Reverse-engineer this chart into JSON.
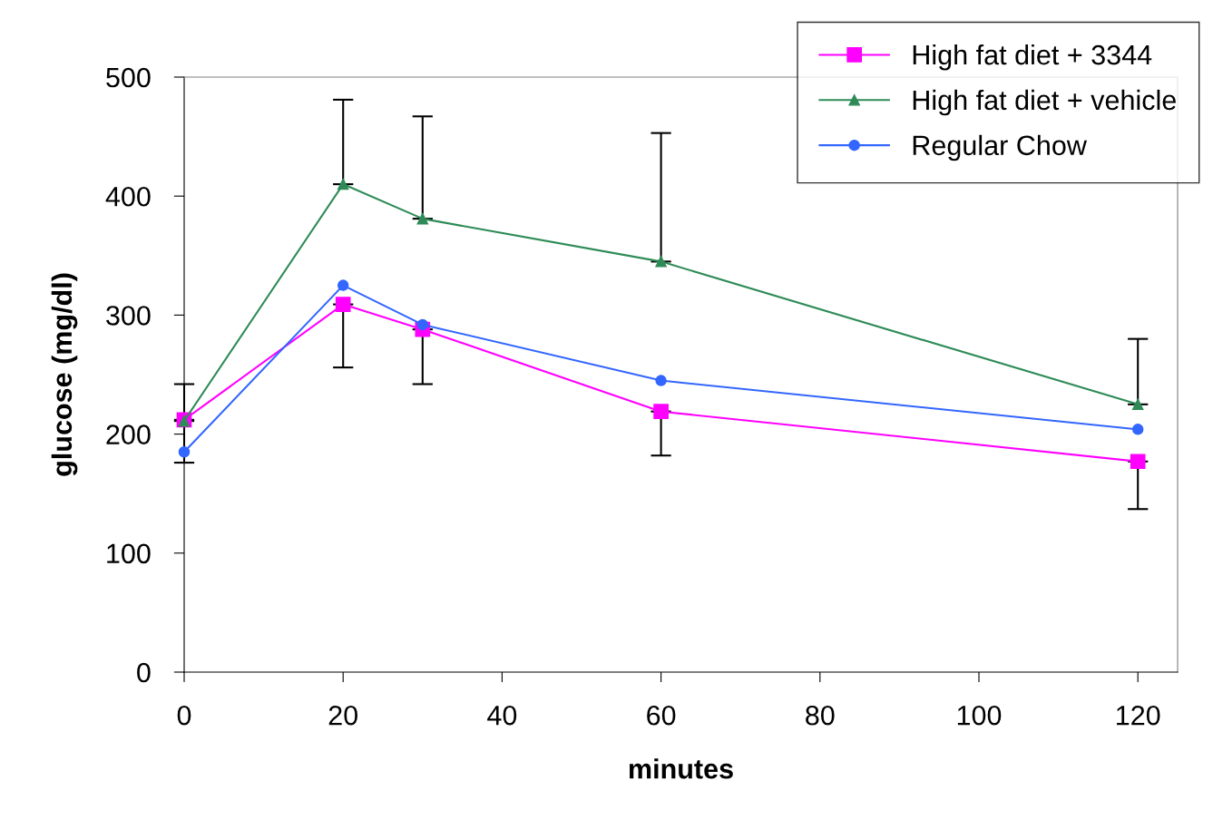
{
  "chart_data": {
    "type": "line",
    "xlabel": "minutes",
    "ylabel": "glucose (mg/dl)",
    "x": [
      0,
      20,
      30,
      60,
      120
    ],
    "series": [
      {
        "name": "High fat diet + 3344",
        "color": "#ff00ff",
        "marker": "square",
        "values": [
          212,
          309,
          288,
          219,
          177
        ],
        "errors": [
          [
            176,
            212
          ],
          [
            256,
            309
          ],
          [
            242,
            288
          ],
          [
            182,
            219
          ],
          [
            137,
            177
          ]
        ]
      },
      {
        "name": "High fat diet + vehicle",
        "color": "#2e8b57",
        "marker": "triangle",
        "values": [
          211,
          410,
          381,
          345,
          225
        ],
        "errors": [
          [
            211,
            242
          ],
          [
            410,
            481
          ],
          [
            381,
            467
          ],
          [
            345,
            453
          ],
          [
            225,
            280
          ]
        ]
      },
      {
        "name": "Regular Chow",
        "color": "#3366ff",
        "marker": "circle",
        "values": [
          185,
          325,
          292,
          245,
          204
        ]
      }
    ],
    "xlim": [
      0,
      125
    ],
    "xticks": [
      0,
      20,
      40,
      60,
      80,
      100,
      120
    ],
    "ylim": [
      0,
      500
    ],
    "yticks": [
      0,
      100,
      200,
      300,
      400,
      500
    ],
    "grid": false,
    "legend": "top right",
    "line_style": "solid"
  }
}
